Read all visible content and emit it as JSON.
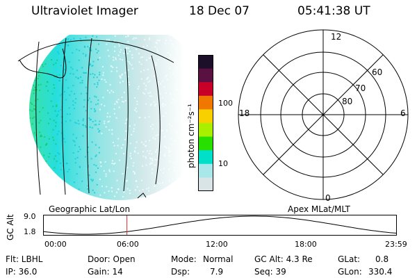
{
  "header": {
    "instrument": "Ultraviolet Imager",
    "date": "18 Dec 07",
    "time": "05:41:38 UT"
  },
  "colorbar": {
    "unit_label": "photon cm⁻²s⁻¹",
    "ticks": [
      "100",
      "10"
    ],
    "colors": [
      "#1b0f2a",
      "#5a1040",
      "#c80028",
      "#f07800",
      "#f8d000",
      "#a8f000",
      "#28e000",
      "#00e0c8",
      "#a8e8ea",
      "#d8e4e6"
    ]
  },
  "polar_plot": {
    "labels": {
      "top": "12",
      "bottom": "0",
      "left": "18",
      "right": "6",
      "ring_80": "80",
      "ring_70": "70",
      "ring_60": "60"
    }
  },
  "projection_labels": {
    "left": "Geographic Lat/Lon",
    "right": "Apex MLat/MLT"
  },
  "altitude_plot": {
    "axis_label": "GC Alt",
    "y_ticks": [
      "9.0",
      "1.8"
    ],
    "x_ticks": [
      "00:00",
      "06:00",
      "12:00",
      "18:00",
      "23:59"
    ],
    "current_time_fraction": 0.237
  },
  "status": {
    "filter": "Flt: LBHL",
    "door": "Door: Open",
    "mode_label": "Mode:",
    "mode_value": "Normal",
    "gc_alt": "GC Alt: 4.3 Re",
    "glat_label": "GLat:",
    "glat_value": "0.8",
    "ip": "IP: 36.0",
    "gain": "Gain: 14",
    "dsp_label": "Dsp:",
    "dsp_value": "7.9",
    "seq": "Seq: 39",
    "glon_label": "GLon:",
    "glon_value": "330.4"
  }
}
